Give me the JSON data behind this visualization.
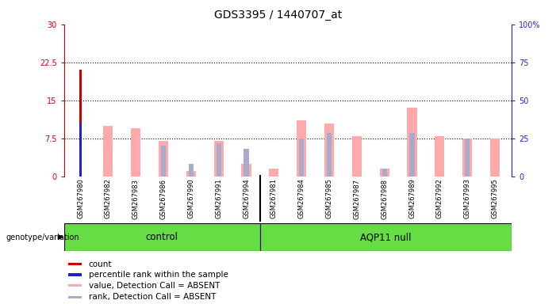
{
  "title": "GDS3395 / 1440707_at",
  "samples": [
    "GSM267980",
    "GSM267982",
    "GSM267983",
    "GSM267986",
    "GSM267990",
    "GSM267991",
    "GSM267994",
    "GSM267981",
    "GSM267984",
    "GSM267985",
    "GSM267987",
    "GSM267988",
    "GSM267989",
    "GSM267992",
    "GSM267993",
    "GSM267995"
  ],
  "control_count": 7,
  "group_labels": [
    "control",
    "AQP11 null"
  ],
  "count_values": [
    21.0,
    0,
    0,
    0,
    0,
    0,
    0,
    0,
    0,
    0,
    0,
    0,
    0,
    0,
    0,
    0
  ],
  "percentile_values": [
    10.5,
    0,
    0,
    0,
    0,
    0,
    0,
    0,
    0,
    0,
    0,
    0,
    0,
    0,
    0,
    0
  ],
  "absent_value": [
    0,
    10.0,
    9.5,
    7.0,
    1.0,
    7.0,
    2.5,
    1.5,
    11.0,
    10.5,
    8.0,
    1.5,
    13.5,
    8.0,
    7.5,
    7.5
  ],
  "absent_rank": [
    0,
    0,
    0,
    6.0,
    2.5,
    6.5,
    5.5,
    0,
    7.5,
    8.5,
    0,
    1.5,
    8.5,
    0,
    7.5,
    0
  ],
  "ylim_left": [
    0,
    30
  ],
  "ylim_right": [
    0,
    100
  ],
  "yticks_left": [
    0,
    7.5,
    15,
    22.5,
    30
  ],
  "ytick_labels_left": [
    "0",
    "7.5",
    "15",
    "22.5",
    "30"
  ],
  "yticks_right": [
    0,
    25,
    50,
    75,
    100
  ],
  "ytick_labels_right": [
    "0",
    "25",
    "50",
    "75",
    "100%"
  ],
  "gridlines": [
    7.5,
    15,
    22.5
  ],
  "count_color": "#cc0000",
  "percentile_color": "#2222cc",
  "absent_value_color": "#ffaaaa",
  "absent_rank_color": "#aaaacc",
  "plot_bg_color": "#ffffff",
  "xtick_bg_color": "#d3d3d3",
  "group_color": "#66dd44",
  "legend_items": [
    {
      "color": "#cc0000",
      "label": "count"
    },
    {
      "color": "#2222cc",
      "label": "percentile rank within the sample"
    },
    {
      "color": "#ffaaaa",
      "label": "value, Detection Call = ABSENT"
    },
    {
      "color": "#aaaacc",
      "label": "rank, Detection Call = ABSENT"
    }
  ]
}
